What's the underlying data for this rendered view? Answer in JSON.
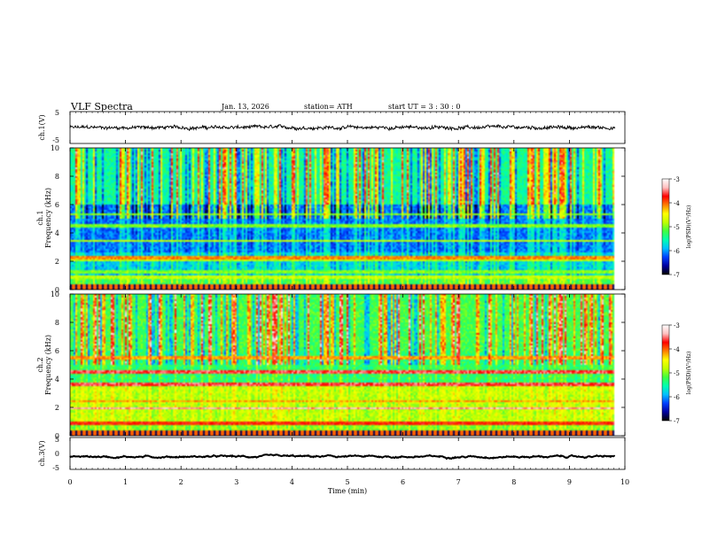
{
  "header": {
    "title": "VLF  Spectra",
    "date": "Jan. 13, 2026",
    "station": "station= ATH",
    "start": "start  UT  =    3  : 30 : 0"
  },
  "chart_data": [
    {
      "type": "line",
      "id": "ch1-waveform",
      "ylabel": "ch.1(V)",
      "ylim": [
        -5,
        5
      ],
      "yticks": [
        "5",
        "-5"
      ],
      "xlim": [
        0,
        10
      ],
      "x_extent": [
        0,
        9.82
      ],
      "baseline_v": 0.0,
      "noise_amplitude_v": 0.9
    },
    {
      "type": "heatmap",
      "id": "ch1-spectrogram",
      "ylabel": "ch.1\nFrequency  (kHz)",
      "ylim": [
        0,
        10
      ],
      "yticks": [
        "0",
        "2",
        "4",
        "6",
        "8",
        "10"
      ],
      "xlim": [
        0,
        10
      ],
      "x_extent": [
        0,
        9.82
      ],
      "colorbar": {
        "label": "log(PSD)(V²/Hz)",
        "ticks": [
          "-3",
          "-4",
          "-5",
          "-6",
          "-7"
        ],
        "range": [
          -7,
          -3
        ]
      }
    },
    {
      "type": "heatmap",
      "id": "ch2-spectrogram",
      "ylabel": "ch.2\nFrequency  (kHz)",
      "ylim": [
        0,
        10
      ],
      "yticks": [
        "0",
        "2",
        "4",
        "6",
        "8",
        "10"
      ],
      "xlim": [
        0,
        10
      ],
      "x_extent": [
        0,
        9.82
      ],
      "colorbar": {
        "label": "log(PSD)(V²/Hz)",
        "ticks": [
          "-3",
          "-4",
          "-5",
          "-6",
          "-7"
        ],
        "range": [
          -7,
          -3
        ]
      }
    },
    {
      "type": "line",
      "id": "ch3-waveform",
      "ylabel": "ch.3(V)",
      "ylim": [
        -5,
        5
      ],
      "yticks": [
        "5",
        "0",
        "-5"
      ],
      "xlim": [
        0,
        10
      ],
      "x_extent": [
        0,
        9.82
      ],
      "baseline_v": -1.0,
      "noise_amplitude_v": 0.15
    }
  ],
  "x_axis": {
    "label": "Time  (min)",
    "ticks": [
      "0",
      "1",
      "2",
      "3",
      "4",
      "5",
      "6",
      "7",
      "8",
      "9",
      "10"
    ]
  },
  "colormap": [
    "#000000",
    "#0000a0",
    "#0040ff",
    "#00c0ff",
    "#00ffb0",
    "#40ff40",
    "#c0ff00",
    "#ffff00",
    "#ff8000",
    "#ff0000",
    "#ffc0c0",
    "#ffffff"
  ]
}
